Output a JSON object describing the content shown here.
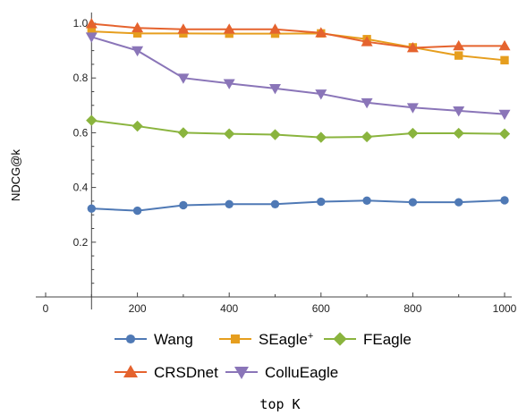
{
  "chart_data": {
    "type": "line",
    "xlabel": "top K",
    "ylabel": "NDCG@k",
    "xlim": [
      0,
      1000
    ],
    "ylim": [
      0,
      1.0
    ],
    "x_ticks": [
      0,
      200,
      400,
      600,
      800,
      1000
    ],
    "y_ticks": [
      0.2,
      0.4,
      0.6,
      0.8,
      1.0
    ],
    "x_tick_labels": [
      "0",
      "200",
      "400",
      "600",
      "800",
      "1000"
    ],
    "y_tick_labels": [
      "0.2",
      "0.4",
      "0.6",
      "0.8",
      "1.0"
    ],
    "grid": false,
    "legend_position": "bottom",
    "x": [
      100,
      200,
      300,
      400,
      500,
      600,
      700,
      800,
      900,
      1000
    ],
    "series": [
      {
        "name": "Wang",
        "sup": "",
        "color": "#4f79b5",
        "marker": "circle",
        "values": [
          0.323,
          0.315,
          0.335,
          0.339,
          0.339,
          0.348,
          0.352,
          0.346,
          0.346,
          0.353
        ]
      },
      {
        "name": "SEagle",
        "sup": "+",
        "color": "#e69e1e",
        "marker": "square",
        "values": [
          0.97,
          0.963,
          0.963,
          0.962,
          0.962,
          0.963,
          0.942,
          0.912,
          0.882,
          0.865
        ]
      },
      {
        "name": "FEagle",
        "sup": "",
        "color": "#8ab43e",
        "marker": "diamond",
        "values": [
          0.645,
          0.624,
          0.6,
          0.596,
          0.593,
          0.583,
          0.585,
          0.598,
          0.598,
          0.596
        ]
      },
      {
        "name": "CRSDnet",
        "sup": "",
        "color": "#e5632e",
        "marker": "triangle-up",
        "values": [
          0.998,
          0.983,
          0.978,
          0.978,
          0.978,
          0.965,
          0.932,
          0.91,
          0.917,
          0.917
        ]
      },
      {
        "name": "ColluEagle",
        "sup": "",
        "color": "#8a75b8",
        "marker": "triangle-down",
        "values": [
          0.95,
          0.9,
          0.8,
          0.78,
          0.762,
          0.742,
          0.71,
          0.692,
          0.68,
          0.668
        ]
      }
    ]
  }
}
